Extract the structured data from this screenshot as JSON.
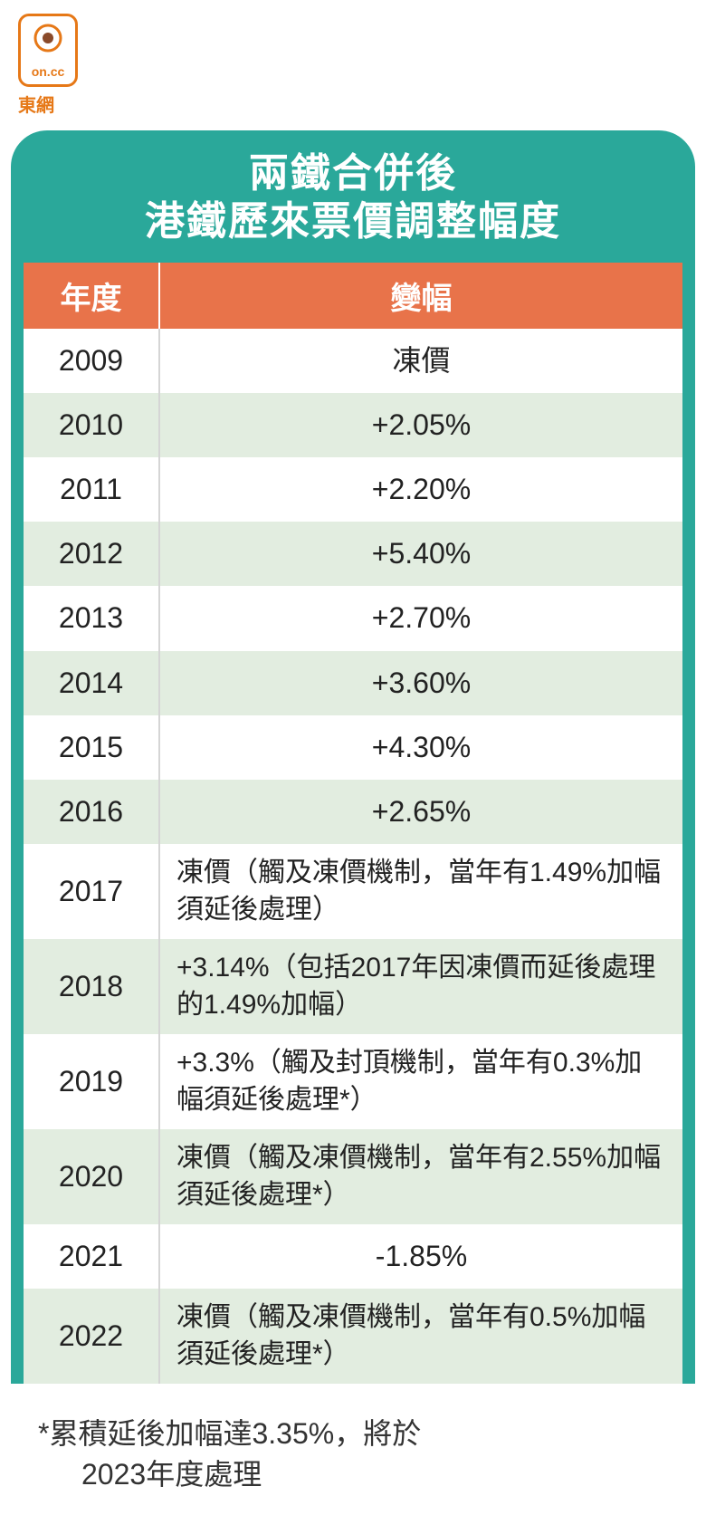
{
  "logo": {
    "brand_text": "on.cc",
    "label": "東網",
    "icon_outer_color": "#e67817",
    "icon_inner_color": "#8a4a2a"
  },
  "title": {
    "line1": "兩鐵合併後",
    "line2": "港鐵歷來票價調整幅度"
  },
  "colors": {
    "container_bg": "#2aa89a",
    "header_bg": "#e8734a",
    "row_white": "#ffffff",
    "row_green": "#e2ede0",
    "text": "#222222",
    "title_text": "#ffffff",
    "logo_color": "#e67817"
  },
  "table": {
    "headers": {
      "year": "年度",
      "change": "變幅"
    },
    "rows": [
      {
        "year": "2009",
        "change": "凍價",
        "long": false
      },
      {
        "year": "2010",
        "change": "+2.05%",
        "long": false
      },
      {
        "year": "2011",
        "change": "+2.20%",
        "long": false
      },
      {
        "year": "2012",
        "change": "+5.40%",
        "long": false
      },
      {
        "year": "2013",
        "change": "+2.70%",
        "long": false
      },
      {
        "year": "2014",
        "change": "+3.60%",
        "long": false
      },
      {
        "year": "2015",
        "change": "+4.30%",
        "long": false
      },
      {
        "year": "2016",
        "change": "+2.65%",
        "long": false
      },
      {
        "year": "2017",
        "change": "凍價（觸及凍價機制，當年有1.49%加幅須延後處理）",
        "long": true
      },
      {
        "year": "2018",
        "change": "+3.14%（包括2017年因凍價而延後處理的1.49%加幅）",
        "long": true
      },
      {
        "year": "2019",
        "change": "+3.3%（觸及封頂機制，當年有0.3%加幅須延後處理*）",
        "long": true
      },
      {
        "year": "2020",
        "change": "凍價（觸及凍價機制，當年有2.55%加幅須延後處理*）",
        "long": true
      },
      {
        "year": "2021",
        "change": "-1.85%",
        "long": false
      },
      {
        "year": "2022",
        "change": "凍價（觸及凍價機制，當年有0.5%加幅須延後處理*）",
        "long": true
      }
    ]
  },
  "footnote": {
    "line1": "*累積延後加幅達3.35%，將於",
    "line2": "2023年度處理"
  }
}
